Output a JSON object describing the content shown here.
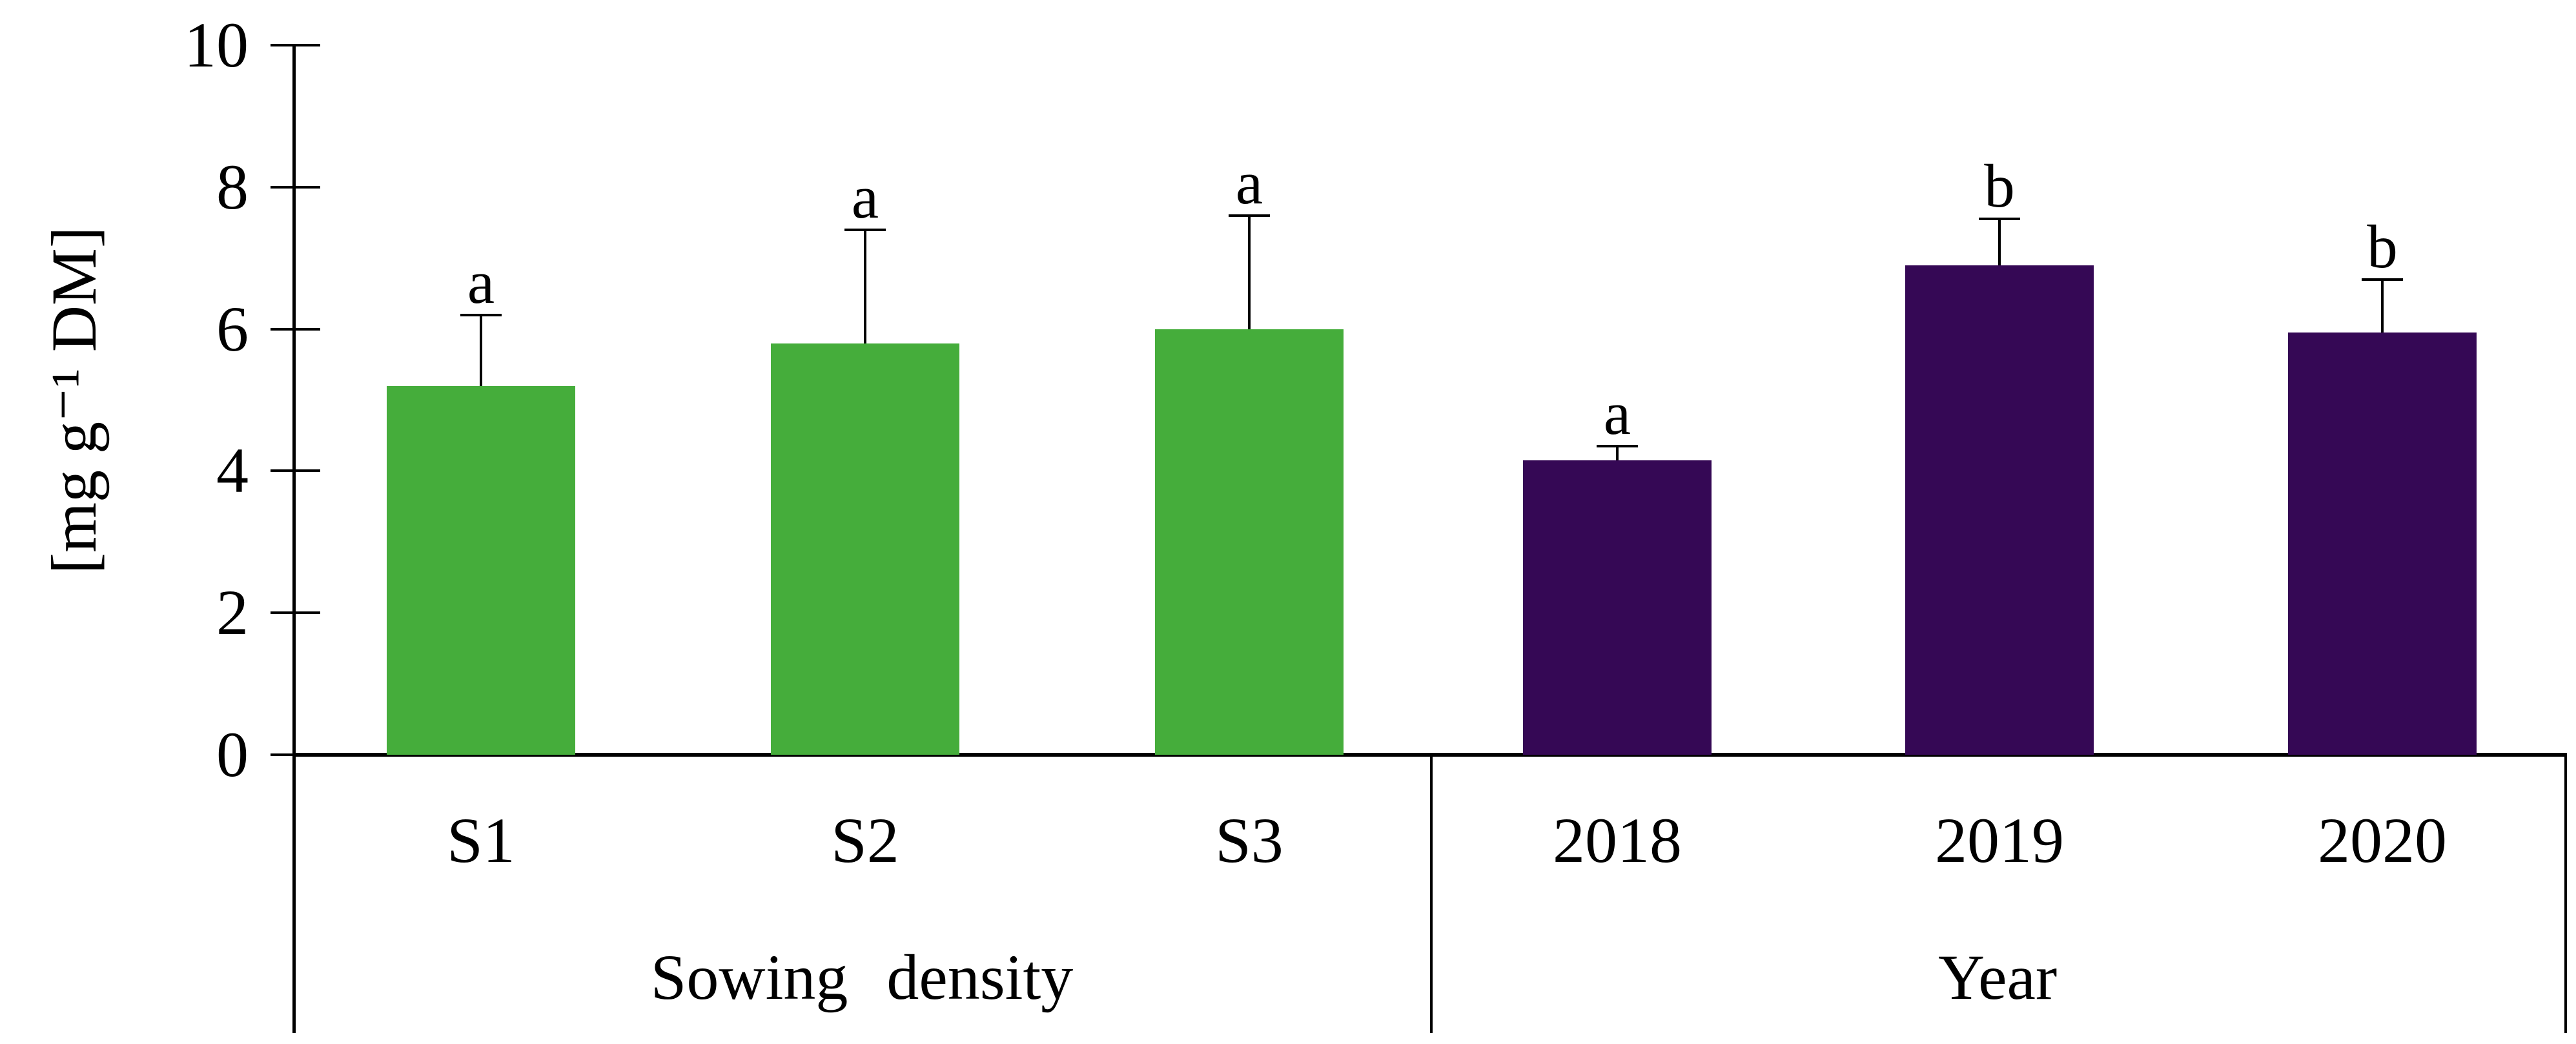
{
  "chart_data": {
    "type": "bar",
    "title": "",
    "ylabel": "[mg g⁻¹ DM]",
    "xlabel": "",
    "ylim": [
      0,
      10
    ],
    "yticks": [
      0,
      2,
      4,
      6,
      8,
      10
    ],
    "grid": false,
    "legend_position": "none",
    "axis_color": "#000000",
    "error_bars": "upper only, capped",
    "groups": [
      {
        "label": "Sowing density",
        "bar_color": "#45AD3B",
        "categories": [
          "S1",
          "S2",
          "S3"
        ],
        "values": [
          5.2,
          5.8,
          6.0
        ],
        "error_up": [
          1.0,
          1.6,
          1.6
        ],
        "sig_letters": [
          "a",
          "a",
          "a"
        ]
      },
      {
        "label": "Year",
        "bar_color": "#350855",
        "categories": [
          "2018",
          "2019",
          "2020"
        ],
        "values": [
          4.15,
          6.9,
          5.95
        ],
        "error_up": [
          0.2,
          0.65,
          0.75
        ],
        "sig_letters": [
          "a",
          "b",
          "b"
        ]
      }
    ]
  }
}
